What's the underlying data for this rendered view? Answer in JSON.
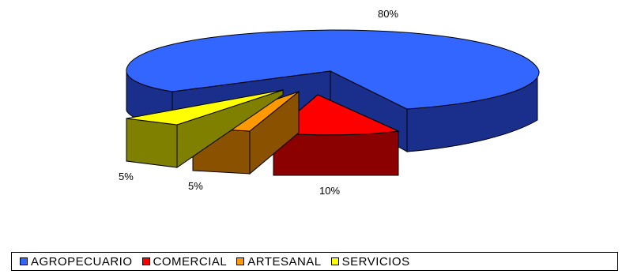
{
  "chart_data": {
    "type": "pie",
    "style": "3d-exploded",
    "title": "",
    "categories": [
      "AGROPECUARIO",
      "COMERCIAL",
      "ARTESANAL",
      "SERVICIOS"
    ],
    "values": [
      80,
      10,
      5,
      5
    ],
    "data_labels": [
      "80%",
      "10%",
      "5%",
      "5%"
    ],
    "colors": {
      "AGROPECUARIO": "#3366ff",
      "COMERCIAL": "#ff0000",
      "ARTESANAL": "#ff9900",
      "SERVICIOS": "#ffff00"
    },
    "side_colors": {
      "AGROPECUARIO": "#1a2f8c",
      "COMERCIAL": "#8b0000",
      "ARTESANAL": "#8a5200",
      "SERVICIOS": "#7f7f00"
    },
    "legend_position": "bottom",
    "grid": false
  }
}
